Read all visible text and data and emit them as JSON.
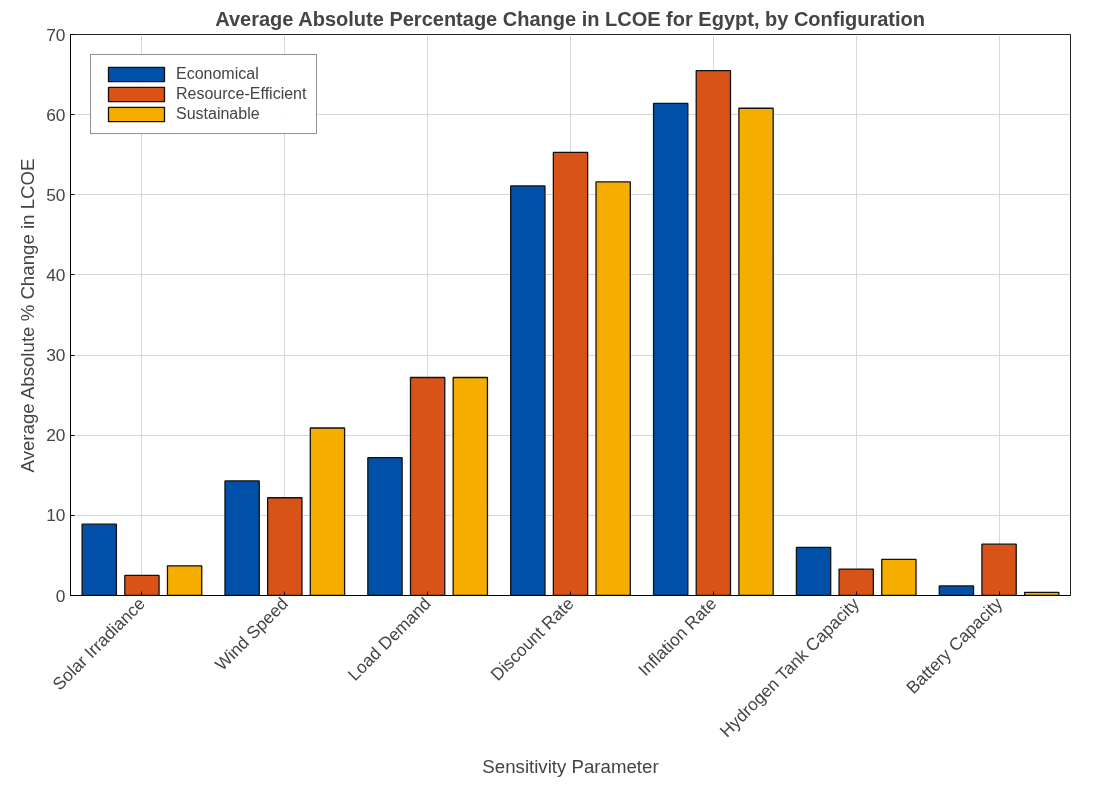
{
  "chart_data": {
    "type": "bar",
    "title": "Average Absolute Percentage Change in LCOE for Egypt, by Configuration",
    "xlabel": "Sensitivity Parameter",
    "ylabel": "Average Absolute % Change in LCOE",
    "categories": [
      "Solar Irradiance",
      "Wind Speed",
      "Load Demand",
      "Discount Rate",
      "Inflation Rate",
      "Hydrogen Tank Capacity",
      "Battery Capacity"
    ],
    "series": [
      {
        "name": "Economical",
        "color": "#0050aa",
        "values": [
          8.9,
          14.3,
          17.2,
          51.1,
          61.4,
          6.0,
          1.2
        ]
      },
      {
        "name": "Resource-Efficient",
        "color": "#d95319",
        "values": [
          2.5,
          12.2,
          27.2,
          55.3,
          65.5,
          3.3,
          6.4
        ]
      },
      {
        "name": "Sustainable",
        "color": "#f5ae00",
        "values": [
          3.7,
          20.9,
          27.2,
          51.6,
          60.8,
          4.5,
          0.4
        ]
      }
    ],
    "ylim": [
      0,
      70
    ],
    "yticks": [
      0,
      10,
      20,
      30,
      40,
      50,
      60,
      70
    ],
    "grid": true,
    "legend": "top left"
  }
}
